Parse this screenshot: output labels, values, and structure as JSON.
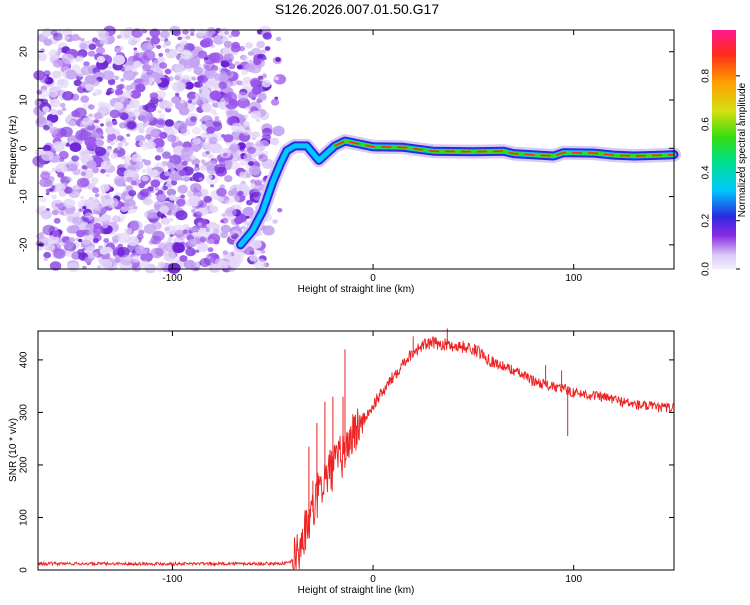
{
  "title": "S126.2026.007.01.50.G17",
  "chart_data": [
    {
      "type": "heatmap",
      "name": "spectrogram",
      "xlabel": "Height of straight line (km)",
      "ylabel": "Frequency (Hz)",
      "xlim": [
        -167,
        150
      ],
      "ylim": [
        -25,
        24.5
      ],
      "xticks": [
        -100,
        0,
        100
      ],
      "yticks": [
        -20,
        -10,
        0,
        10,
        20
      ],
      "noise_region_x": [
        -167,
        -52
      ],
      "ridge": [
        {
          "x": -66,
          "y": -20
        },
        {
          "x": -60,
          "y": -17
        },
        {
          "x": -55,
          "y": -13
        },
        {
          "x": -50,
          "y": -7
        },
        {
          "x": -46,
          "y": -3
        },
        {
          "x": -43,
          "y": -0.5
        },
        {
          "x": -39,
          "y": 0.5
        },
        {
          "x": -33,
          "y": 0.5
        },
        {
          "x": -27,
          "y": -2.5
        },
        {
          "x": -23,
          "y": -1
        },
        {
          "x": -19,
          "y": 0.5
        },
        {
          "x": -14,
          "y": 1.5
        },
        {
          "x": -8,
          "y": 1.0
        },
        {
          "x": 0,
          "y": 0.3
        },
        {
          "x": 15,
          "y": 0.2
        },
        {
          "x": 30,
          "y": -0.6
        },
        {
          "x": 50,
          "y": -0.7
        },
        {
          "x": 65,
          "y": -0.6
        },
        {
          "x": 70,
          "y": -1.1
        },
        {
          "x": 90,
          "y": -1.6
        },
        {
          "x": 95,
          "y": -0.9
        },
        {
          "x": 110,
          "y": -1.0
        },
        {
          "x": 120,
          "y": -1.4
        },
        {
          "x": 130,
          "y": -1.6
        },
        {
          "x": 145,
          "y": -1.4
        },
        {
          "x": 150,
          "y": -1.3
        }
      ],
      "colorbar": {
        "label": "Normalized spectral amplitude",
        "range": [
          0,
          0.99
        ],
        "ticks": [
          0.0,
          0.2,
          0.4,
          0.6,
          0.8
        ]
      }
    },
    {
      "type": "line",
      "name": "snr",
      "xlabel": "Height of straight line (km)",
      "ylabel": "SNR (10 * v/v)",
      "xlim": [
        -167,
        150
      ],
      "ylim": [
        0,
        455
      ],
      "xticks": [
        -100,
        0,
        100
      ],
      "yticks": [
        0,
        100,
        200,
        300,
        400
      ],
      "color": "#ee2222",
      "x": [
        -167,
        -100,
        -50,
        -42,
        -38,
        -35,
        -30,
        -26,
        -22,
        -18,
        -14,
        -10,
        -6,
        -2,
        2,
        6,
        10,
        15,
        20,
        25,
        30,
        35,
        40,
        45,
        50,
        55,
        60,
        70,
        80,
        90,
        95,
        100,
        110,
        120,
        130,
        140,
        150
      ],
      "values": [
        12,
        12,
        12,
        13,
        25,
        60,
        110,
        160,
        185,
        205,
        225,
        260,
        280,
        300,
        325,
        345,
        368,
        395,
        415,
        428,
        432,
        430,
        427,
        425,
        420,
        410,
        395,
        380,
        360,
        348,
        345,
        338,
        332,
        325,
        315,
        310,
        308
      ],
      "spikes": [
        {
          "x": -14,
          "value": 420
        },
        {
          "x": -15,
          "value": 330
        },
        {
          "x": -20,
          "value": 330
        },
        {
          "x": -24,
          "value": 320
        },
        {
          "x": -28,
          "value": 280
        },
        {
          "x": -32,
          "value": 235
        },
        {
          "x": -30,
          "value": 170
        },
        {
          "x": 97,
          "value": 255
        },
        {
          "x": 94,
          "value": 380
        },
        {
          "x": 86,
          "value": 390
        },
        {
          "x": 37,
          "value": 460
        },
        {
          "x": 20,
          "value": 445
        }
      ]
    }
  ]
}
